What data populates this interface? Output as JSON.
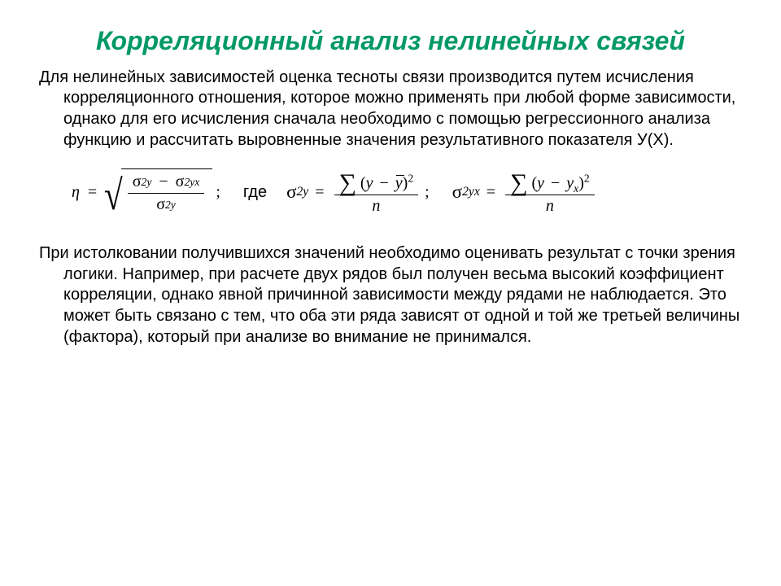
{
  "title": {
    "text": "Корреляционный анализ нелинейных связей",
    "color": "#009966",
    "fontsize": 32
  },
  "para1": {
    "text": "Для нелинейных зависимостей  оценка тесноты связи производится путем исчисления корреляционного отношения, которое можно применять при любой форме зависимости, однако для его исчисления сначала необходимо с помощью регрессионного анализа функцию и рассчитать выровненные значения результативного показателя У(Х).",
    "fontsize": 20,
    "color": "#000000"
  },
  "formula": {
    "eta": "η",
    "eq": "=",
    "sigma": "σ",
    "sub_y": "y",
    "sub_yx": "yx",
    "minus": "−",
    "semicolon": ";",
    "where": "где",
    "sum": "∑",
    "open": "(",
    "close": ")",
    "y": "y",
    "ybar": "y",
    "y_x": "y",
    "y_x_sub": "x",
    "sq": "2",
    "n": "n",
    "fontsize": 20
  },
  "para2": {
    "text": "При истолковании получившихся значений необходимо оценивать результат с точки зрения логики. Например, при  расчете двух рядов был получен весьма высокий коэффициент корреляции, однако явной причинной зависимости между рядами не наблюдается. Это может быть связано с тем, что оба эти ряда зависят от одной и той же третьей величины (фактора), который при анализе во внимание не принимался.",
    "fontsize": 20,
    "color": "#000000"
  }
}
